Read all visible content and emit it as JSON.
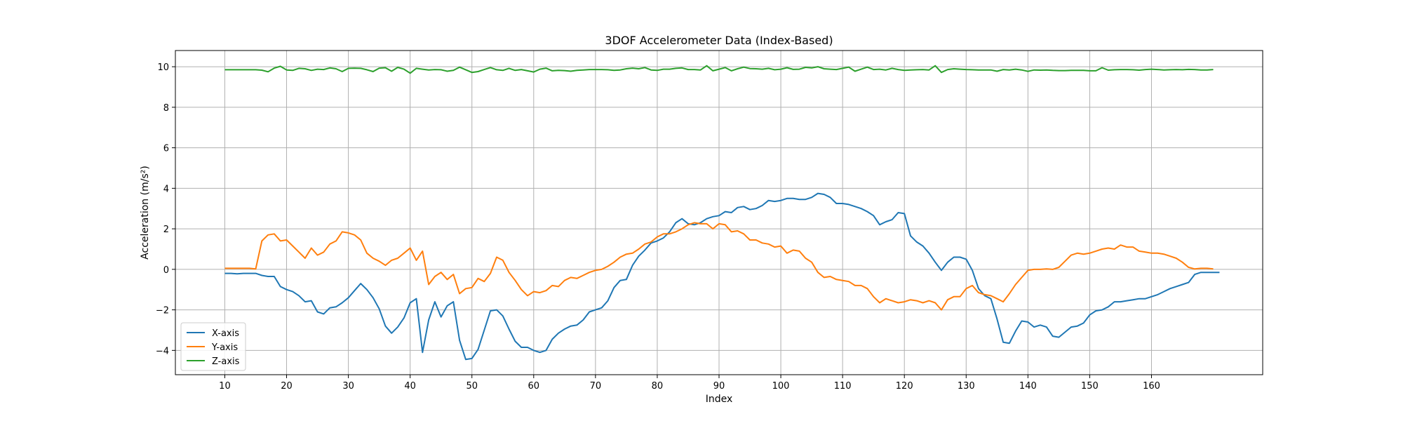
{
  "chart_data": {
    "type": "line",
    "title": "3DOF Accelerometer Data (Index-Based)",
    "xlabel": "Index",
    "ylabel": "Acceleration (m/s²)",
    "xlim": [
      2,
      178
    ],
    "ylim": [
      -5.2,
      10.8
    ],
    "xticks": [
      10,
      20,
      30,
      40,
      50,
      60,
      70,
      80,
      90,
      100,
      110,
      120,
      130,
      140,
      150,
      160
    ],
    "yticks": [
      -4,
      -2,
      0,
      2,
      4,
      6,
      8,
      10
    ],
    "grid": true,
    "legend_position": "lower left",
    "x_start": 10,
    "series": [
      {
        "name": "X-axis",
        "color": "#1f77b4",
        "values": [
          -0.2,
          -0.2,
          -0.22,
          -0.2,
          -0.2,
          -0.2,
          -0.3,
          -0.35,
          -0.35,
          -0.85,
          -1.0,
          -1.1,
          -1.3,
          -1.6,
          -1.55,
          -2.1,
          -2.2,
          -1.9,
          -1.85,
          -1.65,
          -1.4,
          -1.05,
          -0.7,
          -1.0,
          -1.4,
          -1.95,
          -2.8,
          -3.15,
          -2.85,
          -2.4,
          -1.65,
          -1.45,
          -4.1,
          -2.5,
          -1.6,
          -2.35,
          -1.8,
          -1.6,
          -3.5,
          -4.45,
          -4.4,
          -3.95,
          -3.0,
          -2.05,
          -2.0,
          -2.3,
          -2.95,
          -3.55,
          -3.85,
          -3.85,
          -4.0,
          -4.1,
          -4.0,
          -3.45,
          -3.15,
          -2.95,
          -2.8,
          -2.75,
          -2.5,
          -2.1,
          -2.0,
          -1.9,
          -1.55,
          -0.9,
          -0.55,
          -0.5,
          0.2,
          0.65,
          0.95,
          1.3,
          1.4,
          1.55,
          1.85,
          2.3,
          2.5,
          2.25,
          2.2,
          2.3,
          2.5,
          2.6,
          2.65,
          2.85,
          2.8,
          3.05,
          3.1,
          2.95,
          3.0,
          3.15,
          3.4,
          3.35,
          3.4,
          3.5,
          3.5,
          3.45,
          3.45,
          3.55,
          3.75,
          3.7,
          3.55,
          3.25,
          3.25,
          3.2,
          3.1,
          3.0,
          2.85,
          2.65,
          2.2,
          2.35,
          2.45,
          2.8,
          2.75,
          1.65,
          1.35,
          1.15,
          0.8,
          0.35,
          -0.05,
          0.35,
          0.6,
          0.6,
          0.5,
          -0.05,
          -0.95,
          -1.3,
          -1.45,
          -2.45,
          -3.6,
          -3.65,
          -3.05,
          -2.55,
          -2.6,
          -2.85,
          -2.75,
          -2.85,
          -3.3,
          -3.35,
          -3.1,
          -2.85,
          -2.8,
          -2.65,
          -2.25,
          -2.05,
          -2.0,
          -1.85,
          -1.6,
          -1.6,
          -1.55,
          -1.5,
          -1.45,
          -1.45,
          -1.35,
          -1.25,
          -1.1,
          -0.95,
          -0.85,
          -0.75,
          -0.65,
          -0.25,
          -0.15,
          -0.15,
          -0.15,
          -0.15
        ]
      },
      {
        "name": "Y-axis",
        "color": "#ff7f0e",
        "values": [
          0.05,
          0.05,
          0.05,
          0.05,
          0.05,
          0.02,
          1.4,
          1.7,
          1.75,
          1.4,
          1.45,
          1.15,
          0.85,
          0.55,
          1.05,
          0.7,
          0.85,
          1.25,
          1.4,
          1.85,
          1.8,
          1.7,
          1.45,
          0.8,
          0.55,
          0.4,
          0.2,
          0.45,
          0.55,
          0.8,
          1.05,
          0.45,
          0.9,
          -0.75,
          -0.35,
          -0.15,
          -0.5,
          -0.25,
          -1.2,
          -0.95,
          -0.9,
          -0.45,
          -0.6,
          -0.2,
          0.6,
          0.45,
          -0.15,
          -0.55,
          -1.0,
          -1.3,
          -1.1,
          -1.15,
          -1.05,
          -0.8,
          -0.85,
          -0.55,
          -0.4,
          -0.45,
          -0.3,
          -0.15,
          -0.05,
          0.0,
          0.15,
          0.35,
          0.6,
          0.75,
          0.8,
          1.0,
          1.25,
          1.35,
          1.6,
          1.75,
          1.75,
          1.85,
          2.0,
          2.2,
          2.3,
          2.25,
          2.25,
          2.0,
          2.25,
          2.2,
          1.85,
          1.9,
          1.75,
          1.45,
          1.45,
          1.3,
          1.25,
          1.1,
          1.15,
          0.8,
          0.95,
          0.9,
          0.55,
          0.35,
          -0.15,
          -0.4,
          -0.35,
          -0.5,
          -0.55,
          -0.6,
          -0.8,
          -0.8,
          -0.95,
          -1.35,
          -1.65,
          -1.45,
          -1.55,
          -1.65,
          -1.6,
          -1.5,
          -1.55,
          -1.65,
          -1.55,
          -1.65,
          -2.0,
          -1.5,
          -1.35,
          -1.35,
          -0.95,
          -0.8,
          -1.15,
          -1.25,
          -1.3,
          -1.45,
          -1.6,
          -1.2,
          -0.75,
          -0.4,
          -0.05,
          0.0,
          0.0,
          0.02,
          0.0,
          0.1,
          0.4,
          0.7,
          0.8,
          0.75,
          0.8,
          0.9,
          1.0,
          1.05,
          1.0,
          1.2,
          1.1,
          1.1,
          0.9,
          0.85,
          0.8,
          0.8,
          0.75,
          0.65,
          0.55,
          0.35,
          0.1,
          0.02,
          0.05,
          0.05,
          0.02
        ]
      },
      {
        "name": "Z-axis",
        "color": "#2ca02c",
        "values": [
          9.85,
          9.85,
          9.85,
          9.85,
          9.85,
          9.85,
          9.83,
          9.75,
          9.93,
          10.02,
          9.84,
          9.82,
          9.92,
          9.9,
          9.82,
          9.88,
          9.86,
          9.94,
          9.9,
          9.76,
          9.92,
          9.93,
          9.92,
          9.85,
          9.76,
          9.93,
          9.95,
          9.78,
          9.97,
          9.88,
          9.68,
          9.92,
          9.88,
          9.84,
          9.86,
          9.85,
          9.78,
          9.82,
          9.98,
          9.85,
          9.72,
          9.76,
          9.86,
          9.96,
          9.85,
          9.82,
          9.92,
          9.82,
          9.86,
          9.8,
          9.74,
          9.88,
          9.93,
          9.8,
          9.82,
          9.81,
          9.78,
          9.82,
          9.84,
          9.86,
          9.86,
          9.86,
          9.85,
          9.82,
          9.84,
          9.9,
          9.93,
          9.9,
          9.96,
          9.84,
          9.82,
          9.88,
          9.88,
          9.92,
          9.94,
          9.86,
          9.86,
          9.84,
          10.05,
          9.8,
          9.88,
          9.96,
          9.8,
          9.9,
          9.98,
          9.91,
          9.9,
          9.88,
          9.92,
          9.85,
          9.88,
          9.95,
          9.87,
          9.88,
          9.97,
          9.94,
          10.0,
          9.9,
          9.88,
          9.86,
          9.92,
          9.98,
          9.78,
          9.88,
          9.98,
          9.86,
          9.88,
          9.84,
          9.92,
          9.86,
          9.82,
          9.84,
          9.85,
          9.86,
          9.84,
          10.05,
          9.72,
          9.86,
          9.9,
          9.88,
          9.86,
          9.85,
          9.84,
          9.84,
          9.84,
          9.78,
          9.86,
          9.84,
          9.88,
          9.84,
          9.77,
          9.84,
          9.83,
          9.84,
          9.82,
          9.81,
          9.81,
          9.82,
          9.82,
          9.82,
          9.8,
          9.8,
          9.95,
          9.83,
          9.85,
          9.86,
          9.86,
          9.85,
          9.83,
          9.86,
          9.88,
          9.86,
          9.84,
          9.85,
          9.86,
          9.85,
          9.87,
          9.86,
          9.84,
          9.84,
          9.86
        ]
      }
    ]
  }
}
